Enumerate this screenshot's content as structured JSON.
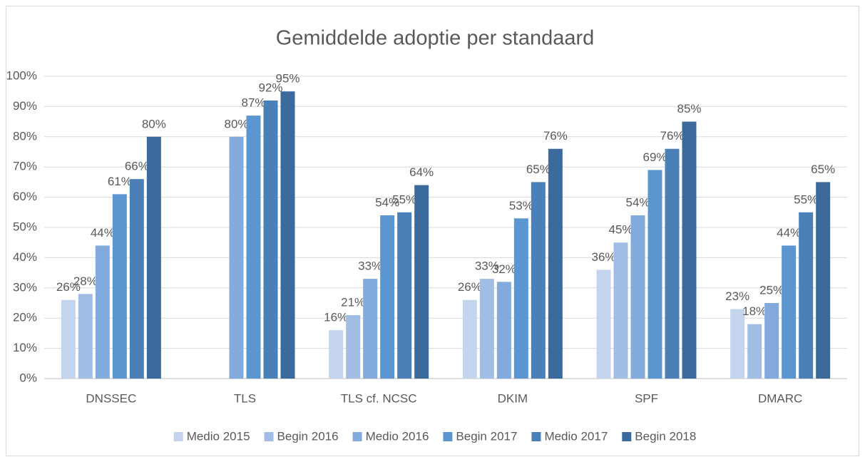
{
  "chart_data": {
    "type": "bar",
    "title": "Gemiddelde adoptie per standaard",
    "categories": [
      "DNSSEC",
      "TLS",
      "TLS cf. NCSC",
      "DKIM",
      "SPF",
      "DMARC"
    ],
    "series": [
      {
        "name": "Medio 2015",
        "color": "#c3d4ec",
        "values": [
          26,
          null,
          16,
          26,
          36,
          23
        ],
        "value_labels": [
          "26%",
          null,
          "16%",
          "26%",
          "36%",
          "23%"
        ]
      },
      {
        "name": "Begin 2016",
        "color": "#a2bde3",
        "values": [
          28,
          null,
          21,
          33,
          45,
          18
        ],
        "value_labels": [
          "28%",
          null,
          "21%",
          "33%",
          "45%",
          "18%"
        ]
      },
      {
        "name": "Medio 2016",
        "color": "#82aadd",
        "values": [
          44,
          80,
          33,
          32,
          54,
          25
        ],
        "value_labels": [
          "44%",
          "80%",
          "33%",
          "32%",
          "54%",
          "25%"
        ]
      },
      {
        "name": "Begin 2017",
        "color": "#5b96d1",
        "values": [
          61,
          87,
          54,
          53,
          69,
          44
        ],
        "value_labels": [
          "61%",
          "87%",
          "54%",
          "53%",
          "69%",
          "44%"
        ]
      },
      {
        "name": "Medio 2017",
        "color": "#4a7fb8",
        "values": [
          66,
          92,
          55,
          65,
          76,
          55
        ],
        "value_labels": [
          "66%",
          "92%",
          "55%",
          "65%",
          "76%",
          "55%"
        ]
      },
      {
        "name": "Begin 2018",
        "color": "#3d6a9c",
        "values": [
          80,
          95,
          64,
          76,
          85,
          65
        ],
        "value_labels": [
          "80%",
          "95%",
          "64%",
          "76%",
          "85%",
          "65%"
        ]
      }
    ],
    "ylim": [
      0,
      100
    ],
    "yticks": [
      {
        "value": 0,
        "label": "0%"
      },
      {
        "value": 10,
        "label": "10%"
      },
      {
        "value": 20,
        "label": "20%"
      },
      {
        "value": 30,
        "label": "30%"
      },
      {
        "value": 40,
        "label": "40%"
      },
      {
        "value": 50,
        "label": "50%"
      },
      {
        "value": 60,
        "label": "60%"
      },
      {
        "value": 70,
        "label": "70%"
      },
      {
        "value": 80,
        "label": "80%"
      },
      {
        "value": 90,
        "label": "90%"
      },
      {
        "value": 100,
        "label": "100%"
      }
    ],
    "grid": true,
    "legend": "bottom"
  }
}
